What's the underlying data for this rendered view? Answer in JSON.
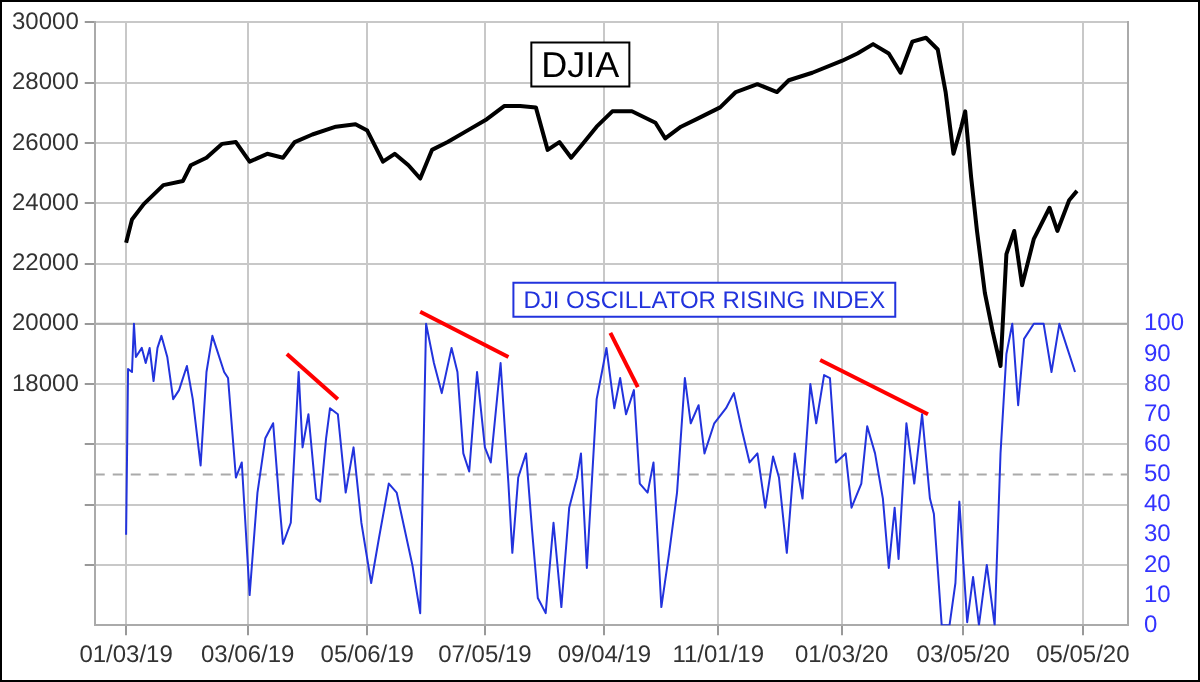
{
  "chart_data": {
    "type": "line",
    "marker": "none",
    "line_style": "solid",
    "legend": false,
    "grid": true,
    "xlim": [
      "2018-12-18",
      "2020-05-28"
    ],
    "xticks": [
      {
        "value": "2019-01-03",
        "label": "01/03/19"
      },
      {
        "value": "2019-03-06",
        "label": "03/06/19"
      },
      {
        "value": "2019-05-06",
        "label": "05/06/19"
      },
      {
        "value": "2019-07-05",
        "label": "07/05/19"
      },
      {
        "value": "2019-09-04",
        "label": "09/04/19"
      },
      {
        "value": "2019-11-01",
        "label": "11/01/19"
      },
      {
        "value": "2020-01-03",
        "label": "01/03/20"
      },
      {
        "value": "2020-03-05",
        "label": "03/05/20"
      },
      {
        "value": "2020-05-05",
        "label": "05/05/20"
      }
    ],
    "ylim": [
      10000,
      30000
    ],
    "yticks": [
      {
        "value": 12000,
        "label": null
      },
      {
        "value": 14000,
        "label": null
      },
      {
        "value": 16000,
        "label": null
      },
      18000,
      20000,
      22000,
      24000,
      26000,
      28000,
      30000
    ],
    "y2lim": [
      0,
      200
    ],
    "y2ticks": [
      0,
      10,
      20,
      30,
      40,
      50,
      60,
      70,
      80,
      90,
      100
    ],
    "ref_lines": [
      {
        "axis": "y2",
        "value": 50,
        "color": "#aaaaaa",
        "line_style": "dashed"
      },
      {
        "axis": "y",
        "value": 20000,
        "color": "#aaaaaa",
        "line_style": "solid"
      }
    ],
    "series": [
      {
        "name": "DJIA",
        "color": "#000000",
        "x": [
          "2019-01-03",
          "2019-01-06",
          "2019-01-12",
          "2019-01-22",
          "2019-02-01",
          "2019-02-05",
          "2019-02-13",
          "2019-02-21",
          "2019-02-28",
          "2019-03-07",
          "2019-03-16",
          "2019-03-24",
          "2019-03-30",
          "2019-04-08",
          "2019-04-20",
          "2019-04-30",
          "2019-05-06",
          "2019-05-14",
          "2019-05-20",
          "2019-05-27",
          "2019-06-02",
          "2019-06-08",
          "2019-06-16",
          "2019-06-26",
          "2019-07-06",
          "2019-07-15",
          "2019-07-23",
          "2019-07-31",
          "2019-08-06",
          "2019-08-12",
          "2019-08-18",
          "2019-08-23",
          "2019-08-31",
          "2019-09-08",
          "2019-09-18",
          "2019-09-30",
          "2019-10-05",
          "2019-10-13",
          "2019-10-21",
          "2019-11-02",
          "2019-11-10",
          "2019-11-21",
          "2019-12-01",
          "2019-12-07",
          "2019-12-19",
          "2020-01-03",
          "2020-01-11",
          "2020-01-19",
          "2020-01-27",
          "2020-02-02",
          "2020-02-08",
          "2020-02-15",
          "2020-02-21",
          "2020-02-25",
          "2020-02-29",
          "2020-03-04",
          "2020-03-06",
          "2020-03-09",
          "2020-03-12",
          "2020-03-16",
          "2020-03-20",
          "2020-03-24",
          "2020-03-27",
          "2020-03-31",
          "2020-04-04",
          "2020-04-10",
          "2020-04-18",
          "2020-04-22",
          "2020-04-28",
          "2020-05-02"
        ],
        "values": [
          22690,
          23460,
          23970,
          24600,
          24740,
          25260,
          25510,
          25970,
          26030,
          25380,
          25640,
          25510,
          26030,
          26280,
          26540,
          26620,
          26410,
          25380,
          25640,
          25260,
          24820,
          25770,
          26030,
          26410,
          26790,
          27230,
          27230,
          27180,
          25770,
          26030,
          25510,
          25900,
          26540,
          27050,
          27050,
          26670,
          26150,
          26540,
          26790,
          27180,
          27690,
          27950,
          27690,
          28080,
          28330,
          28720,
          28970,
          29280,
          28970,
          28330,
          29360,
          29490,
          29100,
          27690,
          25640,
          26540,
          27050,
          24870,
          23080,
          21030,
          19740,
          18600,
          22310,
          23080,
          21280,
          22820,
          23850,
          23080,
          24100,
          24410
        ]
      },
      {
        "name": "DJI OSCILLATOR RISING INDEX",
        "color": "#2233dd",
        "axis": "y2",
        "x": [
          "2019-01-03",
          "2019-01-04",
          "2019-01-06",
          "2019-01-07",
          "2019-01-08",
          "2019-01-11",
          "2019-01-13",
          "2019-01-15",
          "2019-01-17",
          "2019-01-19",
          "2019-01-21",
          "2019-01-24",
          "2019-01-27",
          "2019-01-30",
          "2019-02-03",
          "2019-02-06",
          "2019-02-10",
          "2019-02-13",
          "2019-02-16",
          "2019-02-18",
          "2019-02-22",
          "2019-02-24",
          "2019-02-28",
          "2019-03-03",
          "2019-03-07",
          "2019-03-11",
          "2019-03-15",
          "2019-03-19",
          "2019-03-22",
          "2019-03-24",
          "2019-03-28",
          "2019-04-01",
          "2019-04-03",
          "2019-04-06",
          "2019-04-10",
          "2019-04-12",
          "2019-04-15",
          "2019-04-17",
          "2019-04-21",
          "2019-04-25",
          "2019-04-29",
          "2019-05-03",
          "2019-05-08",
          "2019-05-12",
          "2019-05-17",
          "2019-05-21",
          "2019-05-25",
          "2019-05-29",
          "2019-06-02",
          "2019-06-05",
          "2019-06-09",
          "2019-06-13",
          "2019-06-18",
          "2019-06-21",
          "2019-06-24",
          "2019-06-27",
          "2019-07-01",
          "2019-07-05",
          "2019-07-08",
          "2019-07-13",
          "2019-07-17",
          "2019-07-19",
          "2019-07-22",
          "2019-07-26",
          "2019-07-29",
          "2019-08-01",
          "2019-08-05",
          "2019-08-09",
          "2019-08-13",
          "2019-08-17",
          "2019-08-21",
          "2019-08-23",
          "2019-08-26",
          "2019-08-31",
          "2019-09-03",
          "2019-09-05",
          "2019-09-09",
          "2019-09-12",
          "2019-09-15",
          "2019-09-19",
          "2019-09-22",
          "2019-09-26",
          "2019-09-29",
          "2019-10-03",
          "2019-10-07",
          "2019-10-11",
          "2019-10-15",
          "2019-10-18",
          "2019-10-22",
          "2019-10-25",
          "2019-10-30",
          "2019-11-05",
          "2019-11-09",
          "2019-11-13",
          "2019-11-17",
          "2019-11-21",
          "2019-11-25",
          "2019-11-29",
          "2019-12-02",
          "2019-12-06",
          "2019-12-10",
          "2019-12-14",
          "2019-12-18",
          "2019-12-21",
          "2019-12-25",
          "2019-12-28",
          "2019-12-31",
          "2020-01-05",
          "2020-01-08",
          "2020-01-13",
          "2020-01-16",
          "2020-01-20",
          "2020-01-24",
          "2020-01-27",
          "2020-01-30",
          "2020-02-01",
          "2020-02-05",
          "2020-02-09",
          "2020-02-13",
          "2020-02-17",
          "2020-02-19",
          "2020-02-23",
          "2020-02-27",
          "2020-03-01",
          "2020-03-03",
          "2020-03-07",
          "2020-03-10",
          "2020-03-13",
          "2020-03-17",
          "2020-03-21",
          "2020-03-24",
          "2020-03-27",
          "2020-03-30",
          "2020-04-02",
          "2020-04-05",
          "2020-04-10",
          "2020-04-15",
          "2020-04-19",
          "2020-04-23",
          "2020-04-27",
          "2020-05-01"
        ],
        "values": [
          30,
          85,
          84,
          100,
          89,
          92,
          87,
          92,
          81,
          92,
          96,
          89,
          75,
          78,
          86,
          75,
          53,
          84,
          96,
          92,
          84,
          82,
          49,
          54,
          10,
          44,
          62,
          67,
          42,
          27,
          34,
          84,
          59,
          70,
          42,
          41,
          62,
          72,
          70,
          44,
          59,
          34,
          14,
          29,
          47,
          44,
          32,
          20,
          4,
          100,
          87,
          77,
          92,
          84,
          57,
          51,
          84,
          59,
          54,
          87,
          47,
          24,
          49,
          57,
          32,
          9,
          4,
          34,
          6,
          39,
          49,
          57,
          19,
          75,
          85,
          92,
          72,
          82,
          70,
          78,
          47,
          44,
          54,
          6,
          24,
          44,
          82,
          67,
          73,
          57,
          67,
          72,
          77,
          65,
          54,
          57,
          39,
          56,
          49,
          24,
          57,
          42,
          80,
          67,
          83,
          82,
          54,
          57,
          39,
          47,
          66,
          57,
          42,
          19,
          39,
          22,
          67,
          47,
          70,
          42,
          37,
          0,
          0,
          14,
          41,
          1,
          16,
          0,
          20,
          0,
          57,
          90,
          100,
          73,
          95,
          100,
          100,
          84,
          100,
          92,
          84
        ]
      },
      {
        "type": "line",
        "axis": "y2",
        "color": "#ff0000",
        "x": [
          "2019-03-26",
          "2019-04-21"
        ],
        "values": [
          90,
          75
        ]
      },
      {
        "type": "line",
        "axis": "y2",
        "color": "#ff0000",
        "x": [
          "2019-06-02",
          "2019-07-17"
        ],
        "values": [
          104,
          89
        ]
      },
      {
        "type": "line",
        "axis": "y2",
        "color": "#ff0000",
        "x": [
          "2019-09-07",
          "2019-09-21"
        ],
        "values": [
          97,
          79
        ]
      },
      {
        "type": "line",
        "axis": "y2",
        "color": "#ff0000",
        "x": [
          "2019-12-23",
          "2020-02-16"
        ],
        "values": [
          88,
          70
        ]
      }
    ]
  }
}
